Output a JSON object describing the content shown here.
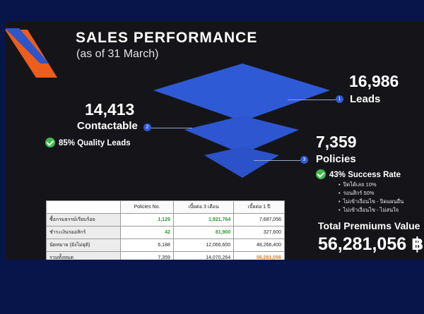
{
  "header": {
    "title": "SALES PERFORMANCE",
    "subtitle": "(as of 31 March)"
  },
  "funnel": {
    "leads": {
      "value": "16,986",
      "label": "Leads",
      "step": "1"
    },
    "contactable": {
      "value": "14,413",
      "label": "Contactable",
      "step": "2",
      "note": "85% Quality Leads"
    },
    "policies": {
      "value": "7,359",
      "label": "Policies",
      "step": "3",
      "note": "43% Success Rate"
    }
  },
  "bullets": [
    "ปิดได้เลย 10%",
    "รอนสิกร์ 50%",
    "ไม่เข้าเงื่อนไข - ปิดแผนอื่น",
    "ไม่เข้าเงื่อนไข - ไม่สนใจ"
  ],
  "table": {
    "headers": [
      "",
      "Policies No.",
      "เบี้ยต่อ 3 เดือน",
      "เบี้ยต่อ 1 ปี"
    ],
    "rows": [
      [
        "ซื้อกรมธรรม์เรียบร้อย",
        "1,129",
        "1,921,764",
        "7,687,056"
      ],
      [
        "ชำระเงินรออสิกร์",
        "42",
        "81,900",
        "327,600"
      ],
      [
        "นัดหมาย (ยังไม่ยุติ)",
        "6,188",
        "12,066,600",
        "48,266,400"
      ],
      [
        "รวมทั้งหมด",
        "7,359",
        "14,070,264",
        "56,281,056"
      ]
    ]
  },
  "total": {
    "label": "Total Premiums Value",
    "value": "56,281,056 ฿"
  },
  "colors": {
    "background": "#07154a",
    "panel": "#151519",
    "funnel_blue": "#2f5ad6",
    "accent_orange": "#ee5d1b",
    "check_green": "#3dbb4d"
  }
}
